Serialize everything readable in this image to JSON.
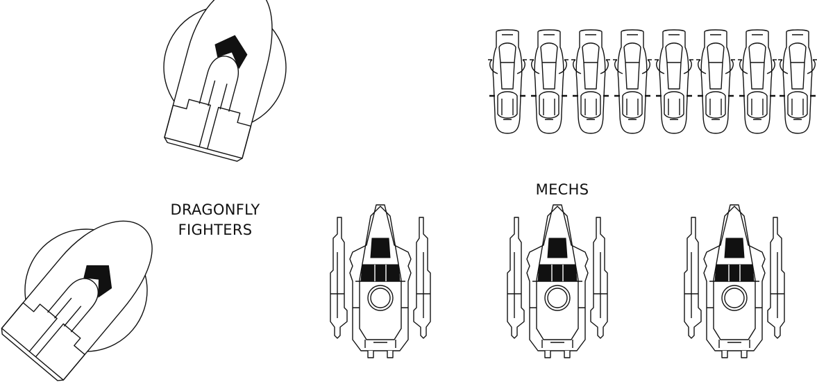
{
  "labels": {
    "dragonfly_line1": "DRAGONFLY",
    "dragonfly_line2": "FIGHTERS",
    "mechs": "MECHS"
  },
  "groups": {
    "dragonfly_fighters": {
      "count": 2,
      "icon": "dragonfly-fighter-icon"
    },
    "mechs": {
      "count": 3,
      "icon": "mech-icon"
    },
    "bikes": {
      "count": 8,
      "icon": "hover-bike-icon"
    }
  },
  "colors": {
    "ink": "#111111",
    "background": "#ffffff"
  }
}
